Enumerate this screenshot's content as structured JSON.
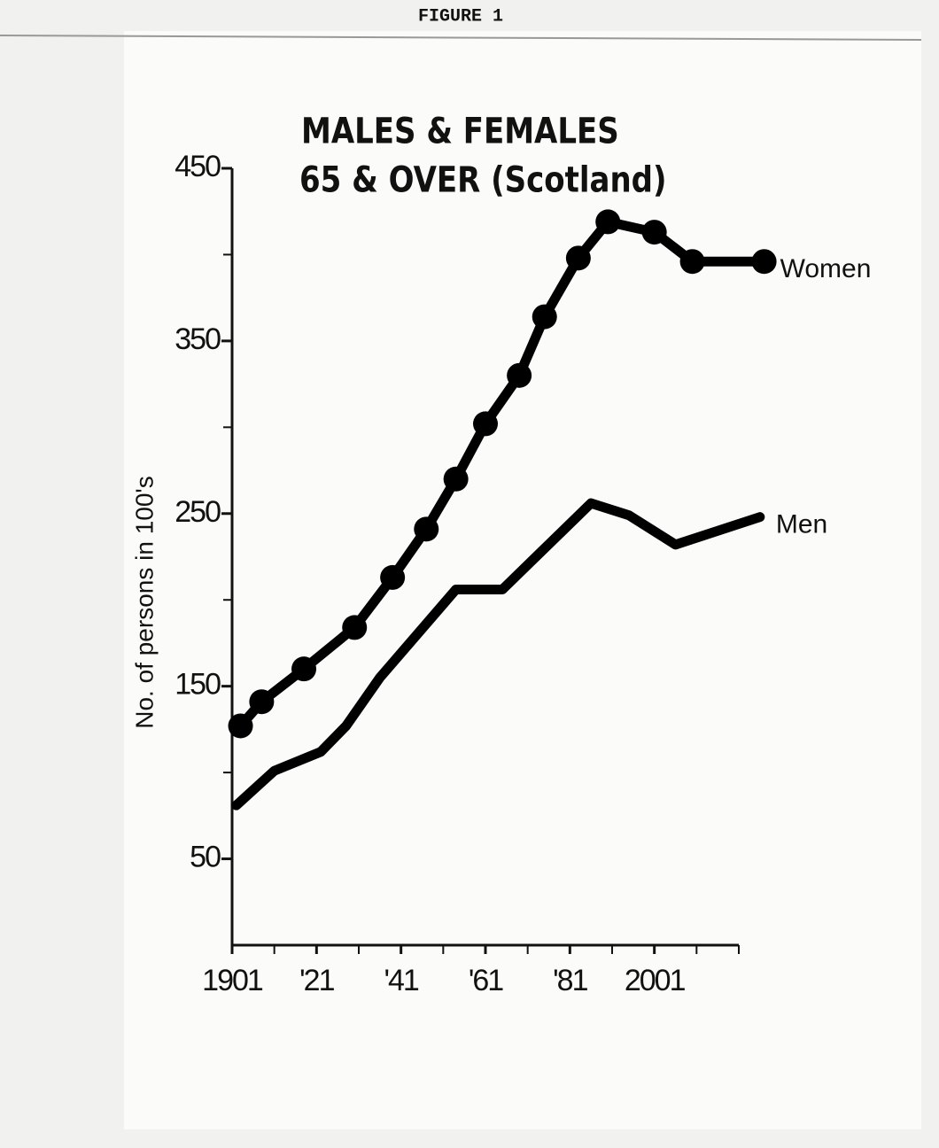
{
  "page_header": "FIGURE 1",
  "chart_data": {
    "type": "line",
    "title": [
      "MALES & FEMALES",
      "65 & OVER (Scotland)"
    ],
    "ylabel": "No. of persons in 100's",
    "xlim": [
      1901,
      2021
    ],
    "xticks": [
      {
        "value": 1901,
        "label": "1901"
      },
      {
        "value": 1921,
        "label": "'21"
      },
      {
        "value": 1941,
        "label": "'41"
      },
      {
        "value": 1961,
        "label": "'61"
      },
      {
        "value": 1981,
        "label": "'81"
      },
      {
        "value": 2001,
        "label": "2001"
      }
    ],
    "xminorticks": [
      1911,
      1931,
      1951,
      1971,
      1991,
      2011,
      2021
    ],
    "ylim": [
      0,
      450
    ],
    "yticks": [
      50,
      150,
      250,
      350,
      450
    ],
    "yminorticks": [
      100,
      200,
      300,
      400
    ],
    "series": [
      {
        "name": "Women",
        "color": "#000000",
        "markers": true,
        "x": [
          1903,
          1908,
          1918,
          1930,
          1939,
          1947,
          1954,
          1961,
          1969,
          1975,
          1983,
          1990,
          2001,
          2010,
          2027
        ],
        "values": [
          127,
          141,
          160,
          184,
          213,
          241,
          270,
          302,
          330,
          364,
          398,
          419,
          413,
          396,
          396
        ]
      },
      {
        "name": "Men",
        "color": "#000000",
        "markers": false,
        "x": [
          1902,
          1911,
          1922,
          1928,
          1936,
          1954,
          1965,
          1986,
          1995,
          2006,
          2026
        ],
        "values": [
          81,
          101,
          112,
          127,
          155,
          206,
          206,
          256,
          249,
          232,
          248
        ]
      }
    ]
  }
}
